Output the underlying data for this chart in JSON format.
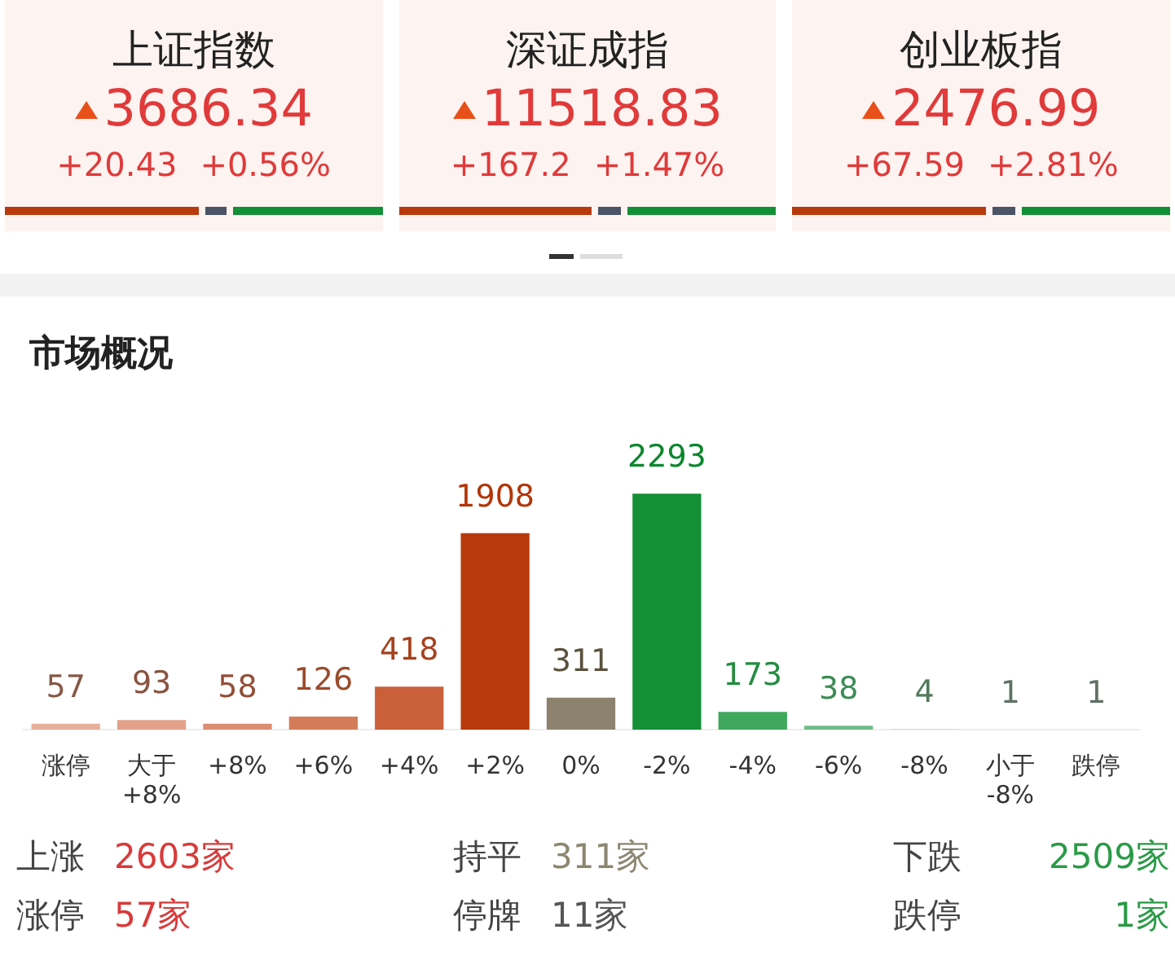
{
  "chart_data": [
    {
      "type": "other",
      "annotations": [
        "上证指数",
        "3686.34",
        "+20.43",
        "+0.56%",
        "深证成指",
        "11518.83",
        "+167.2",
        "+1.47%",
        "创业板指",
        "2476.99",
        "+67.59",
        "+2.81%"
      ]
    },
    {
      "type": "bar",
      "title": "市场概况",
      "categories": [
        "涨停",
        "大于 +8%",
        "+8%",
        "+6%",
        "+4%",
        "+2%",
        "0%",
        "-2%",
        "-4%",
        "-6%",
        "-8%",
        "小于 -8%",
        "跌停"
      ],
      "values": [
        57,
        93,
        58,
        126,
        418,
        1908,
        311,
        2293,
        173,
        38,
        4,
        1,
        1
      ],
      "colors": [
        "#e8b09c",
        "#e2a08a",
        "#dc8e72",
        "#d47c5a",
        "#c9603a",
        "#b83a0c",
        "#8c826e",
        "#138f35",
        "#3fa85c",
        "#6cbd85",
        "#a9d8b5",
        "#cfe9d6",
        "#dff0e4"
      ],
      "data_labels": true,
      "grid": false,
      "legend": false,
      "annotations": [
        "上涨",
        "2603家",
        "持平",
        "311家",
        "下跌",
        "2509家",
        "涨停",
        "57家",
        "停牌",
        "11家",
        "跌停",
        "1家"
      ]
    }
  ]
}
